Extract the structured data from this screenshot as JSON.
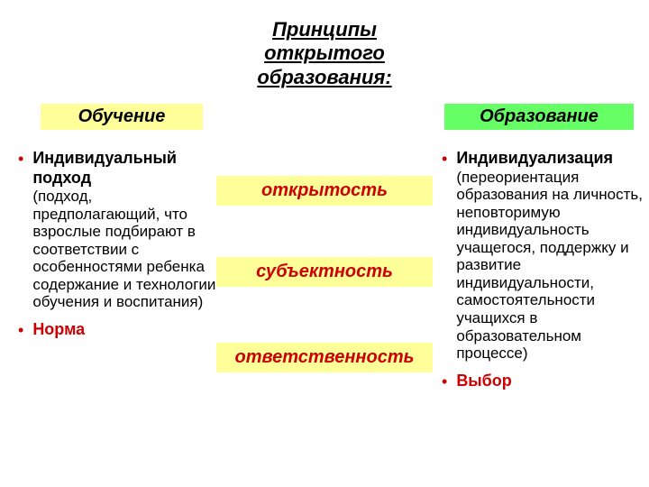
{
  "colors": {
    "heading_left_bg": "#ffff99",
    "heading_right_bg": "#66ff66",
    "center_bg": "#ffff99",
    "red_text": "#cc0000",
    "black_text": "#000000",
    "page_bg": "#ffffff"
  },
  "title": "Принципы открытого образования:",
  "heading_left": "Обучение",
  "heading_right": "Образование",
  "left_items": [
    {
      "title": "Индивидуальный подход",
      "desc": "(подход, предполагающий, что взрослые подбирают в соответствии с особенностями ребенка содержание и технологии обучения и воспитания)"
    },
    {
      "title": "Норма"
    }
  ],
  "right_items": [
    {
      "title": "Индивидуализация",
      "desc": "(переориентация образования на личность, неповторимую индивидуальность учащегося, поддержку и развитие индивидуальности, самостоятельности учащихся в образовательном процессе)"
    },
    {
      "title": "Выбор"
    }
  ],
  "center_terms": [
    "открытость",
    "субъектность",
    "ответственность"
  ]
}
